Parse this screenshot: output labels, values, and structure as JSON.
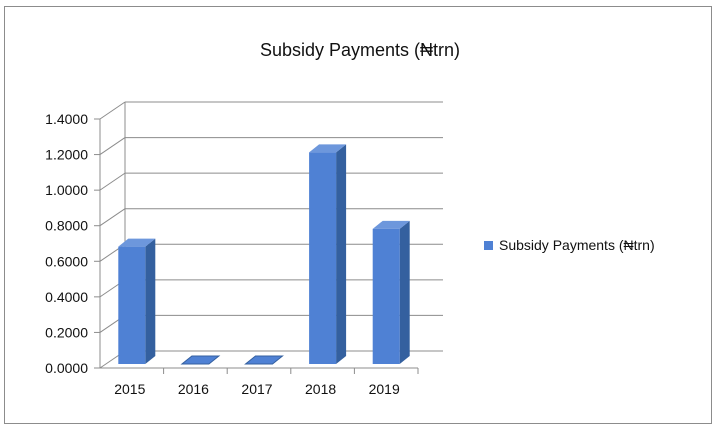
{
  "chart_data": {
    "type": "bar",
    "title": "Subsidy Payments (₦trn)",
    "categories": [
      "2015",
      "2016",
      "2017",
      "2018",
      "2019"
    ],
    "series": [
      {
        "name": "Subsidy Payments (₦trn)",
        "values": [
          0.66,
          0.0,
          0.0,
          1.19,
          0.76
        ]
      }
    ],
    "ylim": [
      0,
      1.4
    ],
    "yticks": [
      "0.0000",
      "0.2000",
      "0.4000",
      "0.6000",
      "0.8000",
      "1.0000",
      "1.2000",
      "1.4000"
    ],
    "grid": true,
    "legend_position": "right",
    "colors": {
      "bar_front": "#4f81d4",
      "bar_side": "#34609f",
      "bar_top": "#6d97dc",
      "grid": "#8c8c8c"
    }
  }
}
